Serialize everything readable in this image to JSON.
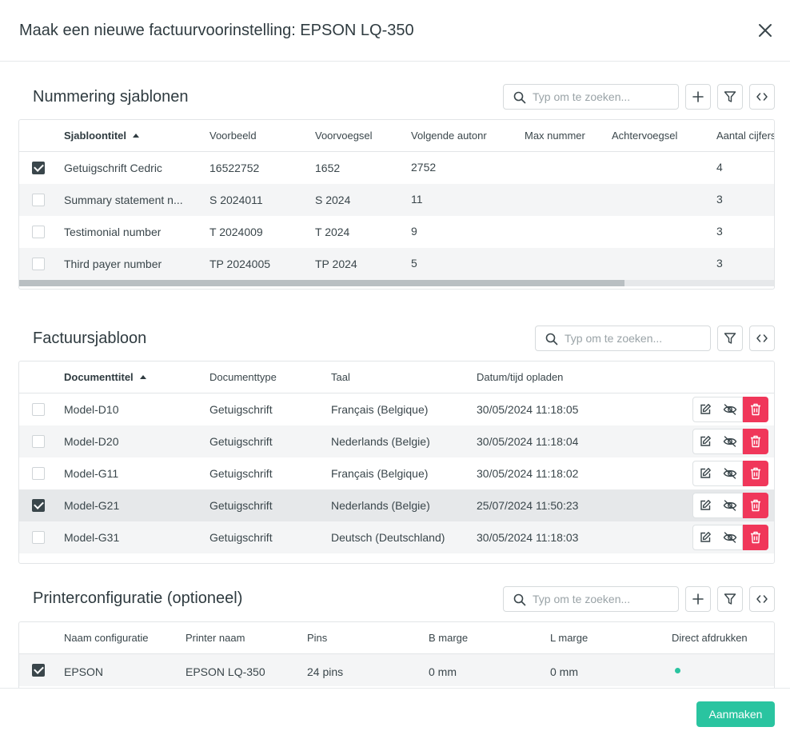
{
  "modal": {
    "title": "Maak een nieuwe factuurvoorinstelling: EPSON LQ-350"
  },
  "colors": {
    "accent": "#2ac4a0",
    "danger": "#f0375a",
    "dot": "#2ac4a0"
  },
  "numbering": {
    "title": "Nummering sjablonen",
    "search_placeholder": "Typ om te zoeken...",
    "columns": [
      "Sjabloontitel",
      "Voorbeeld",
      "Voorvoegsel",
      "Volgende autonr",
      "Max nummer",
      "Achtervoegsel",
      "Aantal cijfers"
    ],
    "rows": [
      {
        "checked": true,
        "cells": [
          "Getuigschrift Cedric",
          "16522752",
          "1652",
          "2752",
          "",
          "",
          "4"
        ]
      },
      {
        "checked": false,
        "cells": [
          "Summary statement n...",
          "S 2024011",
          "S 2024",
          "11",
          "",
          "",
          "3"
        ]
      },
      {
        "checked": false,
        "cells": [
          "Testimonial number",
          "T 2024009",
          "T 2024",
          "9",
          "",
          "",
          "3"
        ]
      },
      {
        "checked": false,
        "cells": [
          "Third payer number",
          "TP 2024005",
          "TP 2024",
          "5",
          "",
          "",
          "3"
        ]
      }
    ]
  },
  "invoice": {
    "title": "Factuursjabloon",
    "search_placeholder": "Typ om te zoeken...",
    "columns": [
      "Documenttitel",
      "Documenttype",
      "Taal",
      "Datum/tijd opladen"
    ],
    "rows": [
      {
        "checked": false,
        "cells": [
          "Model-D10",
          "Getuigschrift",
          "Français (Belgique)",
          "30/05/2024 11:18:05"
        ]
      },
      {
        "checked": false,
        "cells": [
          "Model-D20",
          "Getuigschrift",
          "Nederlands (Belgie)",
          "30/05/2024 11:18:04"
        ]
      },
      {
        "checked": false,
        "cells": [
          "Model-G11",
          "Getuigschrift",
          "Français (Belgique)",
          "30/05/2024 11:18:02"
        ]
      },
      {
        "checked": true,
        "cells": [
          "Model-G21",
          "Getuigschrift",
          "Nederlands (Belgie)",
          "25/07/2024 11:50:23"
        ]
      },
      {
        "checked": false,
        "cells": [
          "Model-G31",
          "Getuigschrift",
          "Deutsch (Deutschland)",
          "30/05/2024 11:18:03"
        ]
      }
    ]
  },
  "printer": {
    "title": "Printerconfiguratie (optioneel)",
    "search_placeholder": "Typ om te zoeken...",
    "columns": [
      "Naam configuratie",
      "Printer naam",
      "Pins",
      "B marge",
      "L marge",
      "Direct afdrukken"
    ],
    "rows": [
      {
        "checked": true,
        "cells": [
          "EPSON",
          "EPSON LQ-350",
          "24 pins",
          "0 mm",
          "0 mm"
        ],
        "direct_print": true
      }
    ]
  },
  "footer": {
    "create_label": "Aanmaken"
  }
}
